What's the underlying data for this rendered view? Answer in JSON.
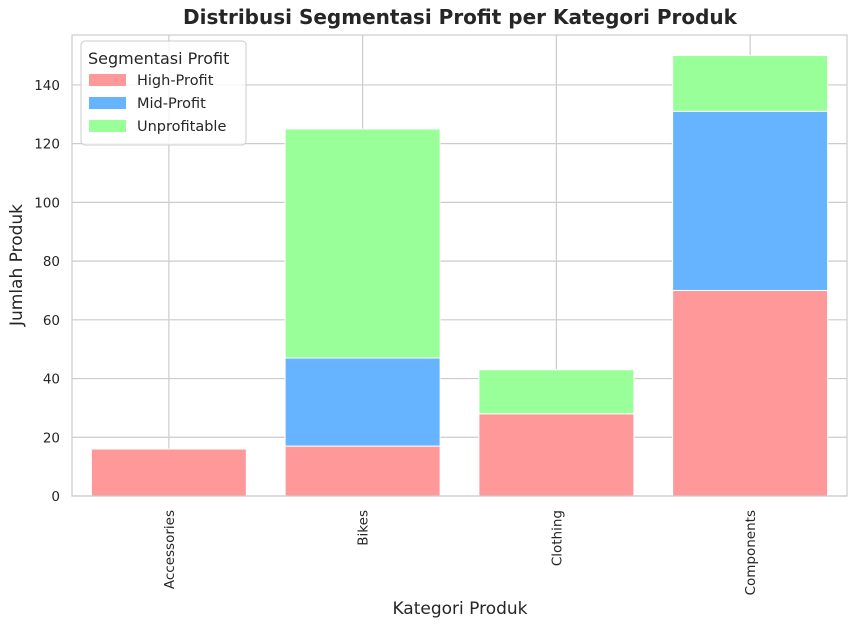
{
  "chart_data": {
    "type": "bar",
    "stacked": true,
    "title": "Distribusi Segmentasi Profit per Kategori Produk",
    "xlabel": "Kategori Produk",
    "ylabel": "Jumlah Produk",
    "categories": [
      "Accessories",
      "Bikes",
      "Clothing",
      "Components"
    ],
    "ylim": [
      0,
      157
    ],
    "yticks": [
      0,
      20,
      40,
      60,
      80,
      100,
      120,
      140
    ],
    "grid": true,
    "legend": {
      "title": "Segmentasi Profit",
      "placement": "top-left"
    },
    "series": [
      {
        "name": "High-Profit",
        "color": "#ff9999",
        "values": [
          16,
          17,
          28,
          70
        ]
      },
      {
        "name": "Mid-Profit",
        "color": "#66b3ff",
        "values": [
          0,
          30,
          0,
          61
        ]
      },
      {
        "name": "Unprofitable",
        "color": "#99ff99",
        "values": [
          0,
          78,
          15,
          19
        ]
      }
    ]
  }
}
